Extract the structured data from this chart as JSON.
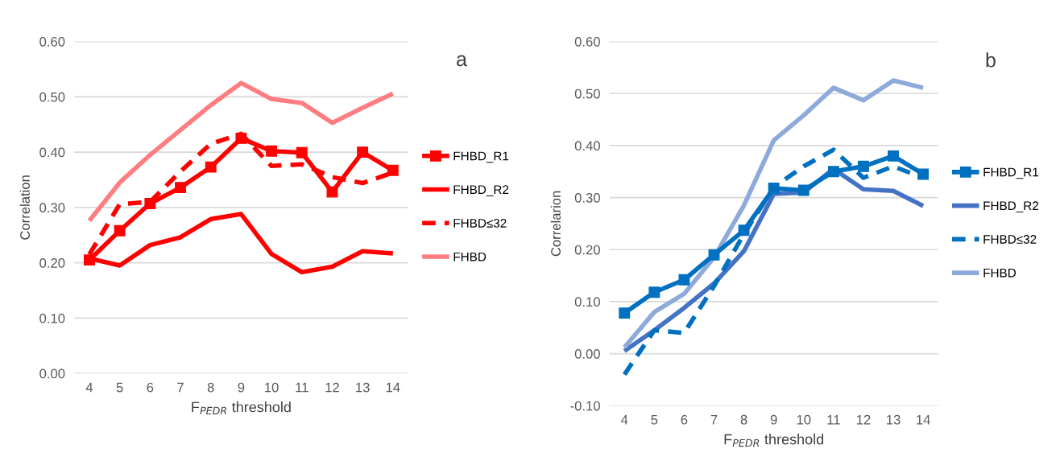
{
  "chart_data": [
    {
      "type": "line",
      "ylabel": "Correlation",
      "xlabel": "F$_{PEDR}$ threshold",
      "annotations": [
        "a"
      ],
      "categories": [
        "4",
        "5",
        "6",
        "7",
        "8",
        "9",
        "10",
        "11",
        "12",
        "13",
        "14"
      ],
      "ylim": [
        0,
        0.6
      ],
      "yticks": [
        {
          "value": 0,
          "label": "0.00"
        },
        {
          "value": 0.1,
          "label": "0.10"
        },
        {
          "value": 0.2,
          "label": "0.20"
        },
        {
          "value": 0.3,
          "label": "0.30"
        },
        {
          "value": 0.4,
          "label": "0.40"
        },
        {
          "value": 0.5,
          "label": "0.50"
        },
        {
          "value": 0.6,
          "label": "0.60"
        }
      ],
      "grid": "y",
      "legend": "right",
      "series": [
        {
          "name": "FHBD_R1",
          "color": "#ff0000",
          "marker": "square",
          "line_style": "solid",
          "values": [
            0.205,
            0.258,
            0.307,
            0.336,
            0.373,
            0.425,
            0.402,
            0.399,
            0.328,
            0.4,
            0.367
          ]
        },
        {
          "name": "FHBD_R2",
          "color": "#ff0000",
          "line_style": "solid",
          "values": [
            0.208,
            0.195,
            0.232,
            0.246,
            0.279,
            0.288,
            0.216,
            0.183,
            0.193,
            0.221,
            0.217
          ]
        },
        {
          "name": "FHBD≤32",
          "color": "#ff0000",
          "line_style": "dashed",
          "values": [
            0.215,
            0.306,
            0.31,
            0.365,
            0.415,
            0.433,
            0.375,
            0.378,
            0.355,
            0.344,
            0.363
          ]
        },
        {
          "name": "FHBD",
          "color": "#ff7c80",
          "line_style": "solid",
          "values": [
            0.276,
            0.345,
            0.395,
            0.44,
            0.485,
            0.525,
            0.496,
            0.489,
            0.453,
            0.48,
            0.506
          ]
        }
      ]
    },
    {
      "type": "line",
      "ylabel": "Correlarion",
      "xlabel": "F$_{PEDR}$ threshold",
      "annotations": [
        "b"
      ],
      "categories": [
        "4",
        "5",
        "6",
        "7",
        "8",
        "9",
        "10",
        "11",
        "12",
        "13",
        "14"
      ],
      "ylim": [
        -0.1,
        0.6
      ],
      "yticks": [
        {
          "value": -0.1,
          "label": "-0.10"
        },
        {
          "value": 0,
          "label": "0.00"
        },
        {
          "value": 0.1,
          "label": "0.10"
        },
        {
          "value": 0.2,
          "label": "0.20"
        },
        {
          "value": 0.3,
          "label": "0.30"
        },
        {
          "value": 0.4,
          "label": "0.40"
        },
        {
          "value": 0.5,
          "label": "0.50"
        },
        {
          "value": 0.6,
          "label": "0.60"
        }
      ],
      "grid": "y",
      "legend": "right",
      "series": [
        {
          "name": "FHBD_R1",
          "color": "#0070c0",
          "marker": "square",
          "line_style": "solid",
          "values": [
            0.078,
            0.118,
            0.142,
            0.19,
            0.237,
            0.318,
            0.314,
            0.35,
            0.36,
            0.38,
            0.345
          ]
        },
        {
          "name": "FHBD_R2",
          "color": "#4472c4",
          "line_style": "solid",
          "values": [
            0.005,
            0.045,
            0.088,
            0.135,
            0.197,
            0.307,
            0.31,
            0.355,
            0.316,
            0.313,
            0.284
          ]
        },
        {
          "name": "FHBD≤32",
          "color": "#0070c0",
          "line_style": "dashed",
          "values": [
            -0.04,
            0.045,
            0.04,
            0.13,
            0.23,
            0.32,
            0.36,
            0.392,
            0.338,
            0.36,
            0.338
          ]
        },
        {
          "name": "FHBD",
          "color": "#8eaadb",
          "line_style": "solid",
          "values": [
            0.012,
            0.08,
            0.115,
            0.185,
            0.285,
            0.41,
            0.458,
            0.511,
            0.487,
            0.525,
            0.511
          ]
        }
      ]
    }
  ]
}
